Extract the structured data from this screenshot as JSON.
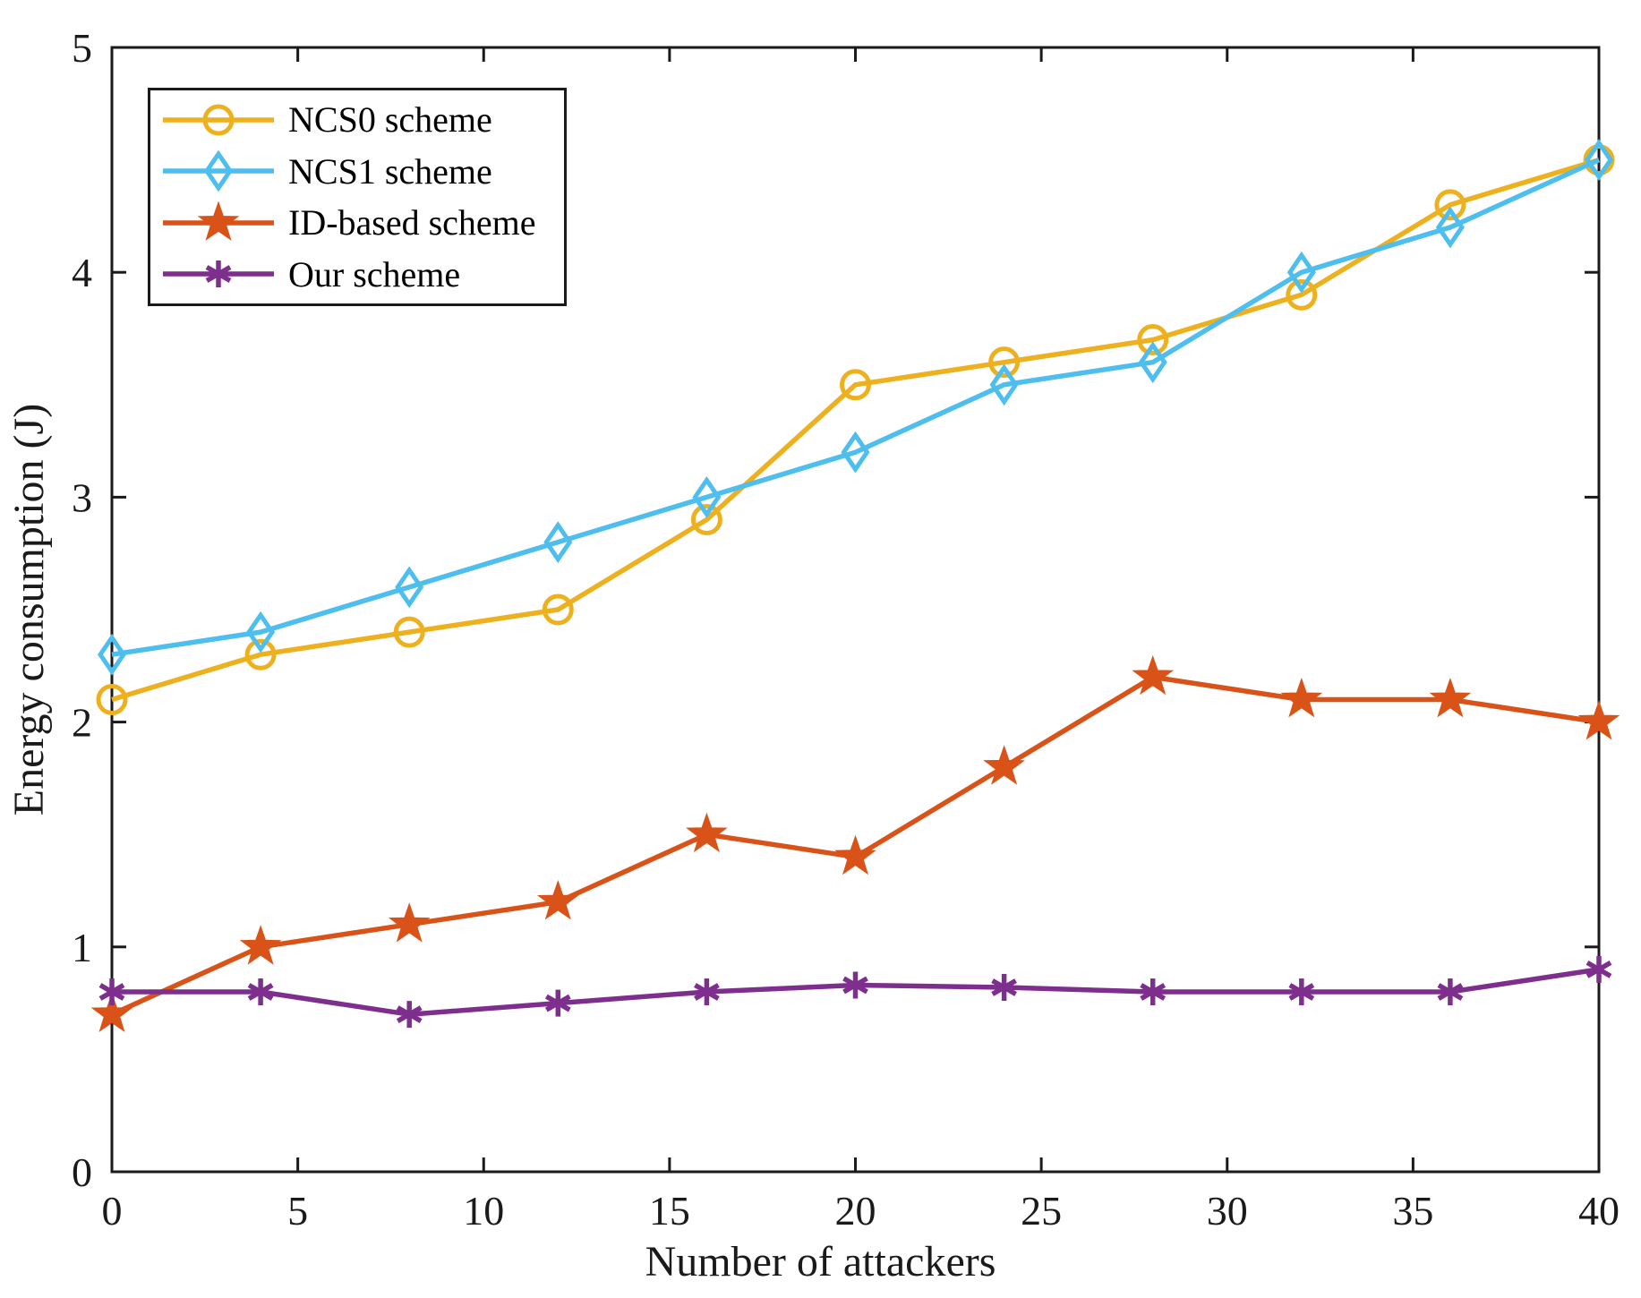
{
  "figure": {
    "background": "#ffffff",
    "axis_color": "#1a1a1a"
  },
  "chart_data": {
    "type": "line",
    "title": "",
    "xlabel": "Number of attackers",
    "ylabel": "Energy consumption (J)",
    "xlim": [
      0,
      40
    ],
    "ylim": [
      0,
      5
    ],
    "xticks": [
      0,
      5,
      10,
      15,
      20,
      25,
      30,
      35,
      40
    ],
    "yticks": [
      0,
      1,
      2,
      3,
      4,
      5
    ],
    "grid": false,
    "legend_position": "top-left",
    "x": [
      0,
      4,
      8,
      12,
      16,
      20,
      24,
      28,
      32,
      36,
      40
    ],
    "series": [
      {
        "name": "NCS0 scheme",
        "color": "#EDB120",
        "marker": "circle",
        "values": [
          2.1,
          2.3,
          2.4,
          2.5,
          2.9,
          3.5,
          3.6,
          3.7,
          3.9,
          4.3,
          4.5
        ]
      },
      {
        "name": "NCS1 scheme",
        "color": "#4DBEEE",
        "marker": "diamond",
        "values": [
          2.3,
          2.4,
          2.6,
          2.8,
          3.0,
          3.2,
          3.5,
          3.6,
          4.0,
          4.2,
          4.5
        ]
      },
      {
        "name": "ID-based scheme",
        "color": "#D95319",
        "marker": "star",
        "values": [
          0.7,
          1.0,
          1.1,
          1.2,
          1.5,
          1.4,
          1.8,
          2.2,
          2.1,
          2.1,
          2.0
        ]
      },
      {
        "name": "Our scheme",
        "color": "#7E2F8E",
        "marker": "asterisk",
        "values": [
          0.8,
          0.8,
          0.7,
          0.75,
          0.8,
          0.83,
          0.82,
          0.8,
          0.8,
          0.8,
          0.9
        ]
      }
    ]
  }
}
